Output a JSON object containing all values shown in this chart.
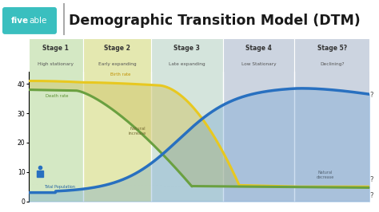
{
  "title": "Demographic Transition Model (DTM)",
  "fiveable_color": "#3abfbf",
  "stage_labels": [
    "Stage 1",
    "Stage 2",
    "Stage 3",
    "Stage 4",
    "Stage 5?"
  ],
  "stage_sublabels": [
    "High stationary",
    "Early expanding",
    "Late expanding",
    "Low Stationary",
    "Declining?"
  ],
  "stage_bold_nums": [
    "1",
    "2",
    "3",
    "4",
    "5?"
  ],
  "stage_colors": [
    "#d4e8c4",
    "#e4e8b0",
    "#d4e4dc",
    "#ccd4e0",
    "#ccd4e0"
  ],
  "stage_bounds": [
    0,
    16,
    36,
    57,
    78,
    100
  ],
  "ylim": [
    0,
    44
  ],
  "birth_rate_color": "#e8c820",
  "death_rate_color": "#6aa040",
  "population_color": "#2870c0",
  "population_fill_color": "#5090d0",
  "natural_increase_color": "#c8c870",
  "natural_decrease_color": "#a0b0c0",
  "bg_color": "#f5f5f5",
  "header_bg": "#ffffff"
}
